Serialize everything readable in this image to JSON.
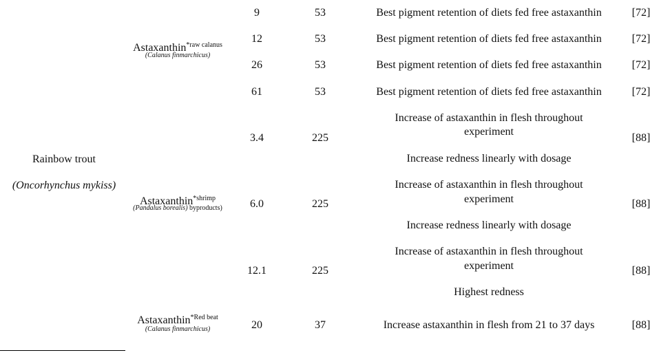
{
  "species": {
    "common": "Rainbow trout",
    "latin": "(Oncorhynchus mykiss)"
  },
  "groups": [
    {
      "name": "Astaxanthin",
      "sup": "*raw calanus",
      "source": "(Calanus finmarchicus)",
      "source_suffix": ""
    },
    {
      "name": "Astaxanthin",
      "sup": "*shrimp",
      "source": "(Pandalus borealis)",
      "source_suffix": " byproducts)"
    },
    {
      "name": "Astaxanthin",
      "sup": "*Red beat",
      "source": "(Calanus finmarchicus)",
      "source_suffix": ""
    }
  ],
  "rows": [
    {
      "dose": "9",
      "days": "53",
      "result": [
        "Best pigment retention of diets fed free astaxanthin"
      ],
      "ref": "[72]"
    },
    {
      "dose": "12",
      "days": "53",
      "result": [
        "Best pigment retention of diets fed free astaxanthin"
      ],
      "ref": "[72]"
    },
    {
      "dose": "26",
      "days": "53",
      "result": [
        "Best pigment retention of diets fed free astaxanthin"
      ],
      "ref": "[72]"
    },
    {
      "dose": "61",
      "days": "53",
      "result": [
        "Best pigment retention of diets fed free astaxanthin"
      ],
      "ref": "[72]"
    },
    {
      "dose": "3.4",
      "days": "225",
      "result": [
        "Increase of astaxanthin in flesh throughout",
        "experiment",
        "Increase redness linearly with dosage"
      ],
      "ref": "[88]"
    },
    {
      "dose": "6.0",
      "days": "225",
      "result": [
        "Increase of astaxanthin in flesh throughout",
        "experiment",
        "Increase redness linearly with dosage"
      ],
      "ref": "[88]"
    },
    {
      "dose": "12.1",
      "days": "225",
      "result": [
        "Increase of astaxanthin in flesh throughout",
        "experiment",
        "Highest redness"
      ],
      "ref": "[88]"
    },
    {
      "dose": "20",
      "days": "37",
      "result": [
        "Increase astaxanthin in flesh from 21 to 37 days"
      ],
      "ref": "[88]"
    }
  ]
}
